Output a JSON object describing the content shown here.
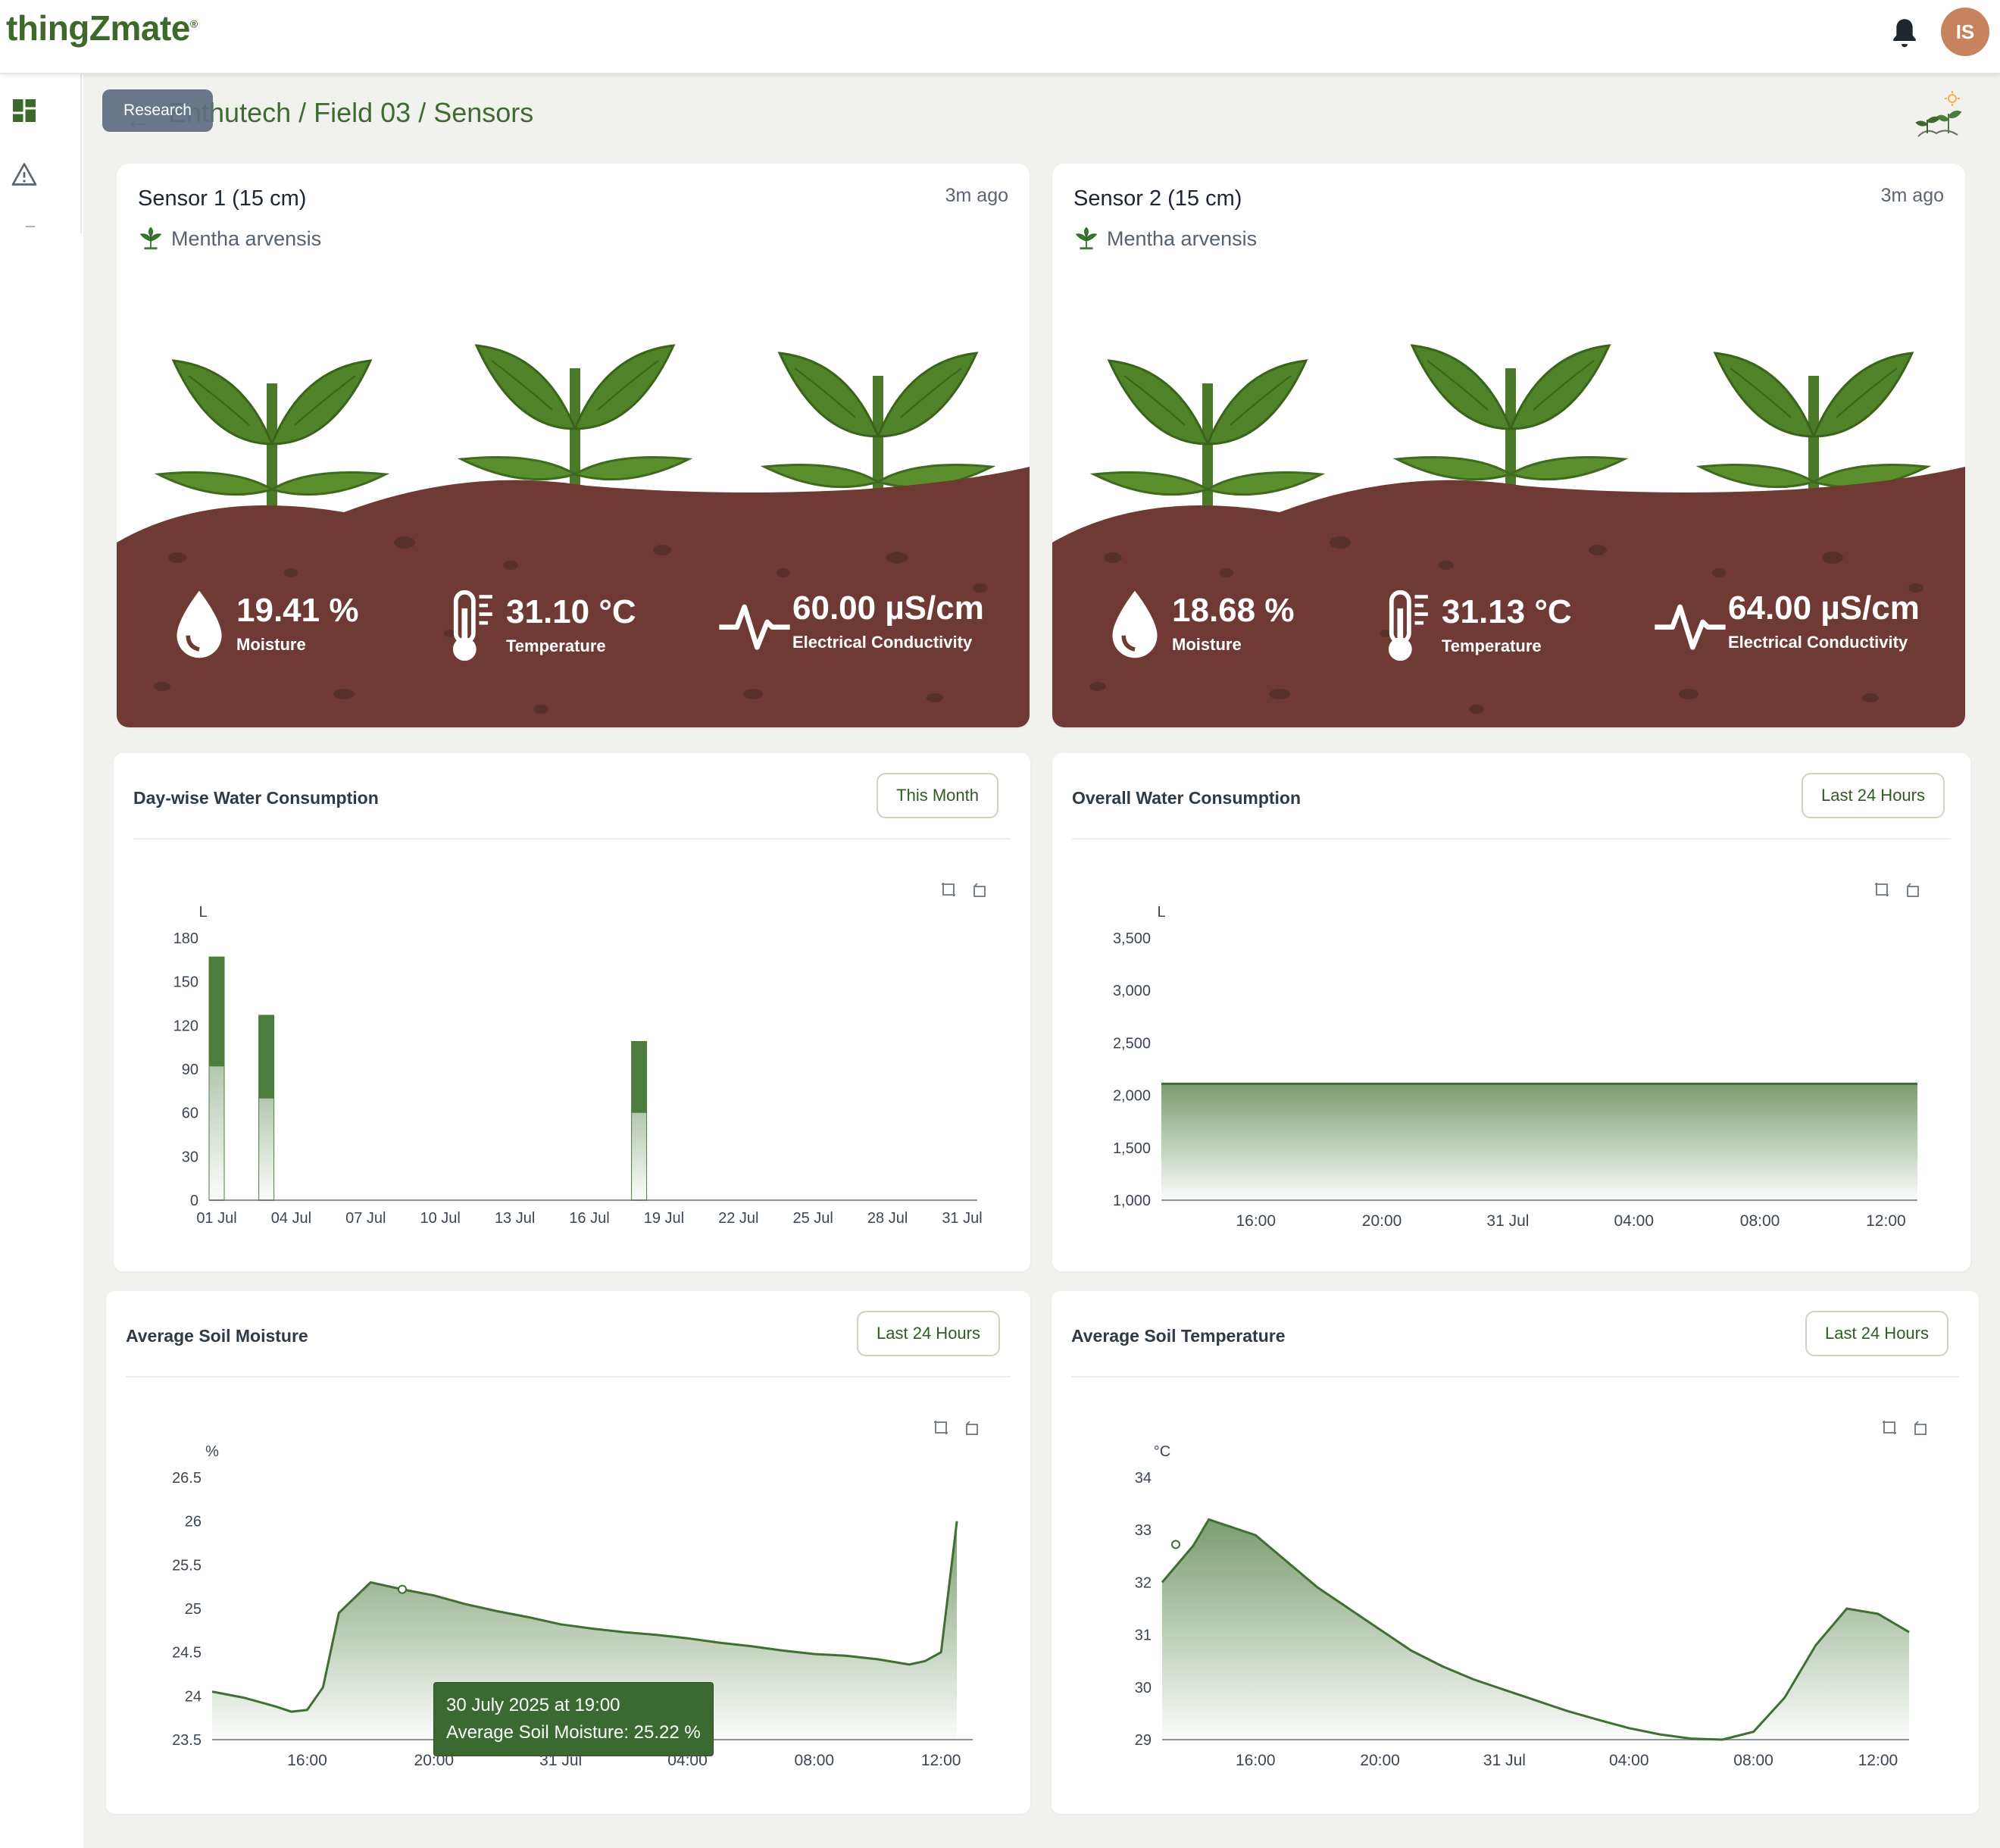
{
  "app": {
    "logo": "thingZmate",
    "logo_mark": "®",
    "user_initials": "IS"
  },
  "sidebar": {
    "items": [
      {
        "icon": "dashboard-icon"
      },
      {
        "icon": "warning-icon"
      }
    ]
  },
  "header": {
    "research_label": "Research",
    "breadcrumb": "Enthutech / Field 03 / Sensors"
  },
  "sensors": [
    {
      "title": "Sensor 1 (15 cm)",
      "updated": "3m ago",
      "crop": "Mentha arvensis",
      "moisture": "19.41 %",
      "moisture_label": "Moisture",
      "temperature": "31.10 °C",
      "temperature_label": "Temperature",
      "ec": "60.00 µS/cm",
      "ec_label": "Electrical Conductivity"
    },
    {
      "title": "Sensor 2 (15 cm)",
      "updated": "3m ago",
      "crop": "Mentha arvensis",
      "moisture": "18.68 %",
      "moisture_label": "Moisture",
      "temperature": "31.13 °C",
      "temperature_label": "Temperature",
      "ec": "64.00 µS/cm",
      "ec_label": "Electrical Conductivity"
    }
  ],
  "panels": {
    "daywise": {
      "title": "Day-wise Water Consumption",
      "range": "This Month"
    },
    "overall": {
      "title": "Overall Water Consumption",
      "range": "Last 24 Hours"
    },
    "moisture": {
      "title": "Average Soil Moisture",
      "range": "Last 24 Hours",
      "tooltip_time": "30 July 2025 at 19:00",
      "tooltip_value": "Average Soil Moisture: 25.22 %"
    },
    "temperature": {
      "title": "Average Soil Temperature",
      "range": "Last 24 Hours"
    }
  },
  "chart_data": [
    {
      "type": "bar",
      "title": "Day-wise Water Consumption",
      "ylabel": "L",
      "ylim": [
        0,
        180
      ],
      "yticks": [
        0,
        30,
        60,
        90,
        120,
        150,
        180
      ],
      "x_ticks": [
        "01 Jul",
        "04 Jul",
        "07 Jul",
        "10 Jul",
        "13 Jul",
        "16 Jul",
        "19 Jul",
        "22 Jul",
        "25 Jul",
        "28 Jul",
        "31 Jul"
      ],
      "points": [
        {
          "x": "01 Jul",
          "y": 167
        },
        {
          "x": "03 Jul",
          "y": 127
        },
        {
          "x": "18 Jul",
          "y": 109
        }
      ]
    },
    {
      "type": "area",
      "title": "Overall Water Consumption",
      "ylabel": "L",
      "ylim": [
        1000,
        3500
      ],
      "yticks": [
        1000,
        1500,
        2000,
        2500,
        3000,
        3500
      ],
      "x_ticks": [
        "16:00",
        "20:00",
        "31 Jul",
        "04:00",
        "08:00",
        "12:00"
      ],
      "x": [
        "13:00",
        "16:00",
        "20:00",
        "00:00",
        "04:00",
        "08:00",
        "12:00",
        "13:00"
      ],
      "values": [
        2110,
        2110,
        2110,
        2110,
        2110,
        2110,
        2110,
        2110
      ]
    },
    {
      "type": "area",
      "title": "Average Soil Moisture",
      "ylabel": "%",
      "ylim": [
        23.5,
        26.5
      ],
      "yticks": [
        23.5,
        24,
        24.5,
        25,
        25.5,
        26,
        26.5
      ],
      "x_ticks": [
        "16:00",
        "20:00",
        "31 Jul",
        "04:00",
        "08:00",
        "12:00"
      ],
      "x": [
        "13:00",
        "14:00",
        "15:00",
        "15:30",
        "16:00",
        "16:30",
        "17:00",
        "18:00",
        "19:00",
        "20:00",
        "21:00",
        "22:00",
        "23:00",
        "00:00",
        "01:00",
        "02:00",
        "03:00",
        "04:00",
        "05:00",
        "06:00",
        "07:00",
        "08:00",
        "09:00",
        "10:00",
        "11:00",
        "11:30",
        "12:00",
        "12:30"
      ],
      "values": [
        24.05,
        23.98,
        23.88,
        23.82,
        23.84,
        24.1,
        24.95,
        25.3,
        25.22,
        25.15,
        25.05,
        24.97,
        24.9,
        24.82,
        24.77,
        24.73,
        24.7,
        24.66,
        24.61,
        24.57,
        24.52,
        24.48,
        24.46,
        24.42,
        24.36,
        24.4,
        24.5,
        26.0
      ]
    },
    {
      "type": "area",
      "title": "Average Soil Temperature",
      "ylabel": "°C",
      "ylim": [
        29,
        34
      ],
      "yticks": [
        29,
        30,
        31,
        32,
        33,
        34
      ],
      "x_ticks": [
        "16:00",
        "20:00",
        "31 Jul",
        "04:00",
        "08:00",
        "12:00"
      ],
      "x": [
        "13:00",
        "14:00",
        "14:30",
        "15:00",
        "16:00",
        "17:00",
        "18:00",
        "19:00",
        "20:00",
        "21:00",
        "22:00",
        "23:00",
        "00:00",
        "01:00",
        "02:00",
        "03:00",
        "04:00",
        "05:00",
        "06:00",
        "07:00",
        "08:00",
        "09:00",
        "10:00",
        "11:00",
        "12:00",
        "13:00"
      ],
      "values": [
        32.0,
        32.7,
        33.2,
        33.1,
        32.9,
        32.4,
        31.9,
        31.5,
        31.1,
        30.7,
        30.4,
        30.15,
        29.95,
        29.75,
        29.55,
        29.38,
        29.22,
        29.1,
        29.02,
        29.0,
        29.15,
        29.8,
        30.8,
        31.5,
        31.4,
        31.05
      ]
    }
  ],
  "colors": {
    "brand_green": "#3d6a2b",
    "bar_green": "#4d7c3f",
    "soil_brown": "#6f3a33",
    "avatar": "#c7825e"
  }
}
